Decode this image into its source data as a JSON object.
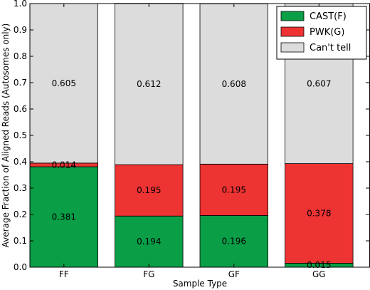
{
  "chart_data": {
    "type": "bar",
    "stacked": true,
    "categories": [
      "FF",
      "FG",
      "GF",
      "GG"
    ],
    "series": [
      {
        "name": "CAST(F)",
        "color": "#0a9e47",
        "values": [
          0.381,
          0.194,
          0.196,
          0.015
        ],
        "labels": [
          "0.381",
          "0.194",
          "0.196",
          "0.015"
        ]
      },
      {
        "name": "PWK(G)",
        "color": "#ee3333",
        "values": [
          0.014,
          0.195,
          0.195,
          0.378
        ],
        "labels": [
          "0.014",
          "0.195",
          "0.195",
          "0.378"
        ]
      },
      {
        "name": "Can't tell",
        "color": "#dcdcdc",
        "values": [
          0.605,
          0.612,
          0.608,
          0.607
        ],
        "labels": [
          "0.605",
          "0.612",
          "0.608",
          "0.607"
        ]
      }
    ],
    "xlabel": "Sample Type",
    "ylabel": "Average Fraction of Aligned Reads (Autosomes only)",
    "ylim": [
      0,
      1.0
    ],
    "yticks": [
      "0.0",
      "0.1",
      "0.2",
      "0.3",
      "0.4",
      "0.5",
      "0.6",
      "0.7",
      "0.8",
      "0.9",
      "1.0"
    ],
    "legend_position": "top-right",
    "grid": false
  }
}
